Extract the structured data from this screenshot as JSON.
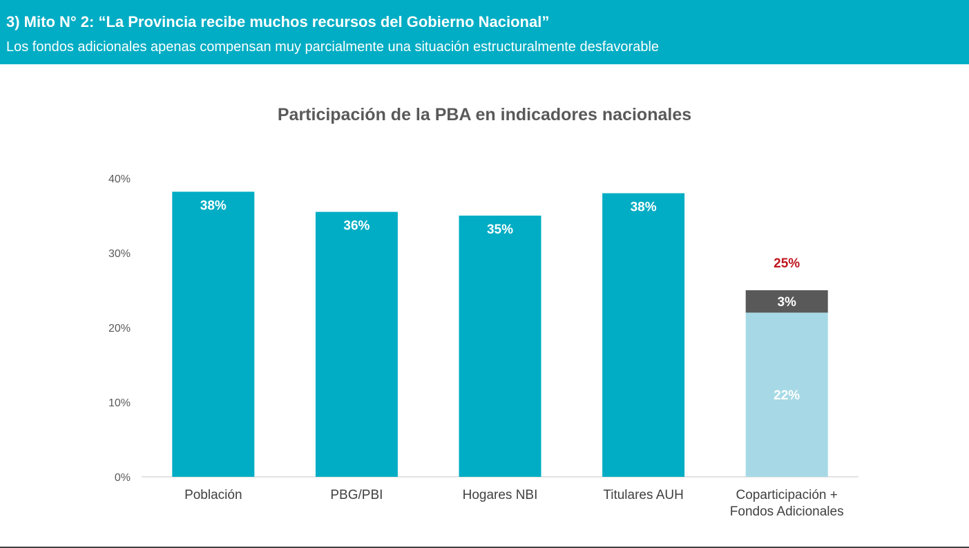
{
  "header": {
    "title": "3) Mito N° 2: “La Provincia recibe muchos recursos del Gobierno Nacional”",
    "subtitle": "Los fondos adicionales apenas compensan muy parcialmente una situación estructuralmente desfavorable"
  },
  "colors": {
    "header_bg": "#00adc4",
    "bar_main": "#00adc4",
    "bar_coparticipacion": "#a6d9e5",
    "bar_fondos": "#595959",
    "total_label": "#c0161f"
  },
  "chart_data": {
    "type": "bar",
    "stacked": true,
    "title": "Participación de la PBA en indicadores nacionales",
    "xlabel": "",
    "ylabel": "",
    "ylim": [
      0,
      40
    ],
    "y_ticks": [
      0,
      10,
      20,
      30,
      40
    ],
    "y_tick_labels": [
      "0%",
      "10%",
      "20%",
      "30%",
      "40%"
    ],
    "grid": false,
    "legend": "none",
    "categories": [
      {
        "lines": [
          "Población"
        ]
      },
      {
        "lines": [
          "PBG/PBI"
        ]
      },
      {
        "lines": [
          "Hogares NBI"
        ]
      },
      {
        "lines": [
          "Titulares AUH"
        ]
      },
      {
        "lines": [
          "Coparticipación +",
          "Fondos Adicionales"
        ]
      }
    ],
    "bars": [
      {
        "segments": [
          {
            "value": 38.2,
            "label": "38%",
            "color": "#00adc4"
          }
        ]
      },
      {
        "segments": [
          {
            "value": 35.5,
            "label": "36%",
            "color": "#00adc4"
          }
        ]
      },
      {
        "segments": [
          {
            "value": 35.0,
            "label": "35%",
            "color": "#00adc4"
          }
        ]
      },
      {
        "segments": [
          {
            "value": 38.0,
            "label": "38%",
            "color": "#00adc4"
          }
        ]
      },
      {
        "segments": [
          {
            "value": 22.0,
            "label": "22%",
            "color": "#a6d9e5"
          },
          {
            "value": 3.0,
            "label": "3%",
            "color": "#595959"
          }
        ],
        "total_label": "25%"
      }
    ]
  }
}
